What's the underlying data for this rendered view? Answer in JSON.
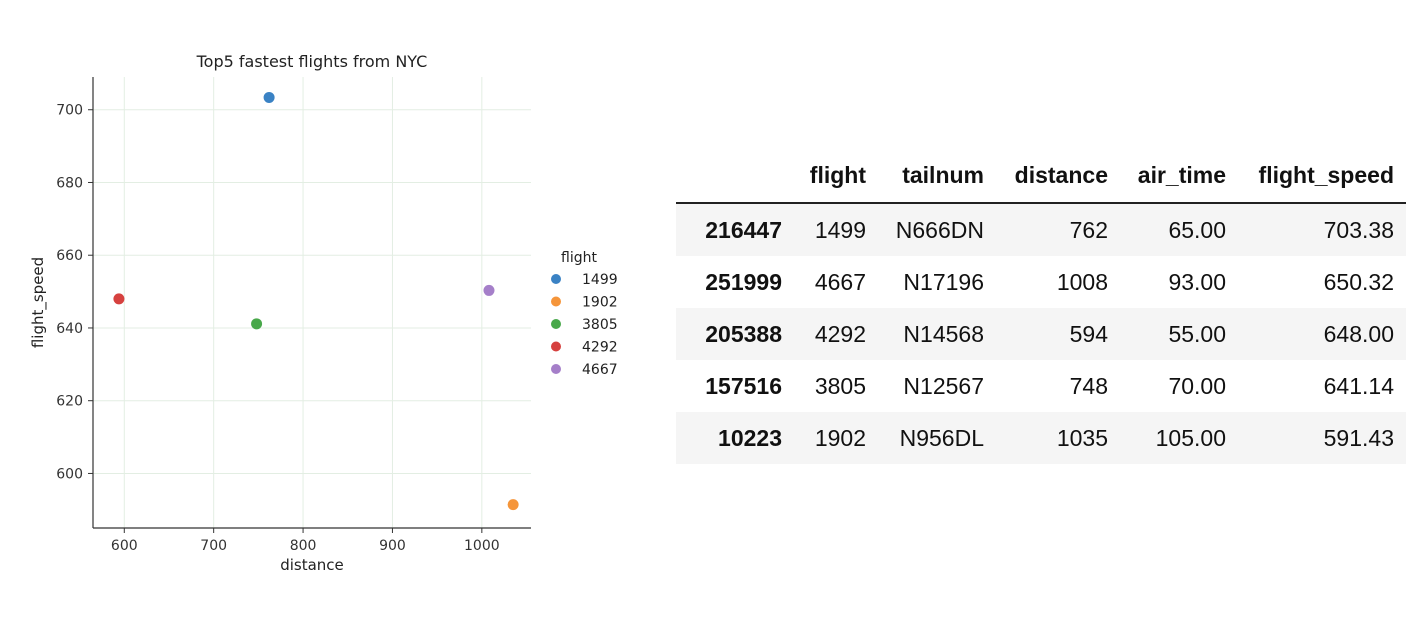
{
  "chart_data": {
    "type": "scatter",
    "title": "Top5 fastest flights from NYC",
    "xlabel": "distance",
    "ylabel": "flight_speed",
    "xlim": [
      565,
      1055
    ],
    "ylim": [
      585,
      709
    ],
    "xticks": [
      600,
      700,
      800,
      900,
      1000
    ],
    "yticks": [
      600,
      620,
      640,
      660,
      680,
      700
    ],
    "grid": true,
    "legend_title": "flight",
    "legend_position": "outside-right",
    "series": [
      {
        "name": "1499",
        "color": "#3a82c4",
        "x": [
          762
        ],
        "y": [
          703.38
        ]
      },
      {
        "name": "1902",
        "color": "#f5953a",
        "x": [
          1035
        ],
        "y": [
          591.43
        ]
      },
      {
        "name": "3805",
        "color": "#48a84a",
        "x": [
          748
        ],
        "y": [
          641.14
        ]
      },
      {
        "name": "4292",
        "color": "#d6413f",
        "x": [
          594
        ],
        "y": [
          648.0
        ]
      },
      {
        "name": "4667",
        "color": "#a57fc9",
        "x": [
          1008
        ],
        "y": [
          650.32
        ]
      }
    ]
  },
  "table": {
    "columns": [
      "",
      "flight",
      "tailnum",
      "distance",
      "air_time",
      "flight_speed"
    ],
    "rows": [
      [
        "216447",
        "1499",
        "N666DN",
        "762",
        "65.00",
        "703.38"
      ],
      [
        "251999",
        "4667",
        "N17196",
        "1008",
        "93.00",
        "650.32"
      ],
      [
        "205388",
        "4292",
        "N14568",
        "594",
        "55.00",
        "648.00"
      ],
      [
        "157516",
        "3805",
        "N12567",
        "748",
        "70.00",
        "641.14"
      ],
      [
        "10223",
        "1902",
        "N956DL",
        "1035",
        "105.00",
        "591.43"
      ]
    ]
  }
}
